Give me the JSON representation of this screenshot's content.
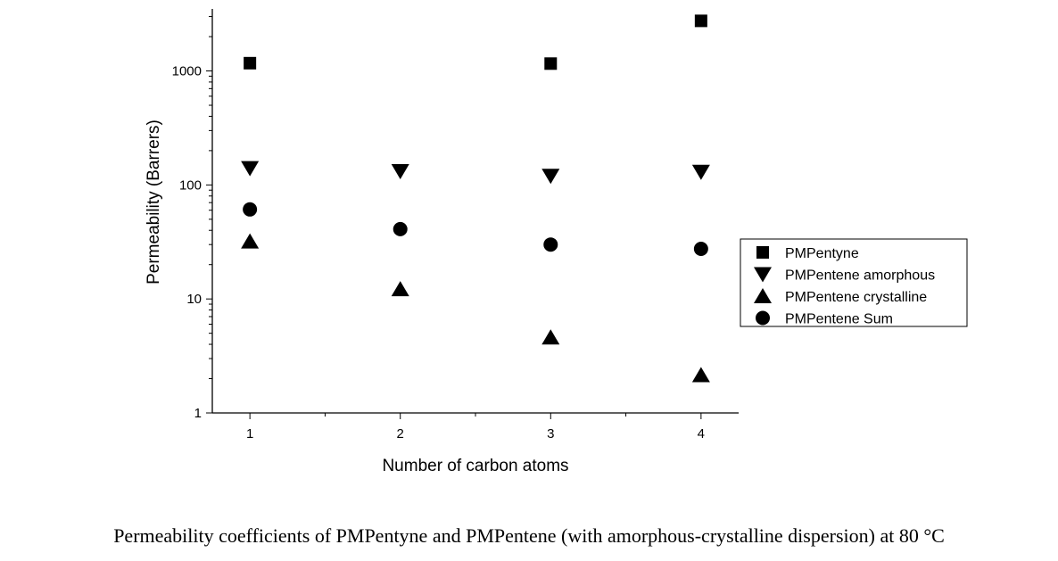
{
  "chart_data": {
    "type": "scatter",
    "x": [
      1,
      2,
      3,
      4
    ],
    "xlabel": "Number of carbon atoms",
    "ylabel": "Permeability (Barrers)",
    "yscale": "log",
    "ylim": [
      1,
      3500
    ],
    "xlim": [
      0.75,
      4.25
    ],
    "xticks": [
      "1",
      "2",
      "3",
      "4"
    ],
    "yticks": [
      {
        "value": 1,
        "label": "1"
      },
      {
        "value": 10,
        "label": "10"
      },
      {
        "value": 100,
        "label": "100"
      },
      {
        "value": 1000,
        "label": "1000"
      }
    ],
    "legend_position": "right",
    "series": [
      {
        "name": "PMPentyne",
        "marker": "square",
        "color": "#000000",
        "values": [
          1170,
          null,
          1160,
          2750
        ]
      },
      {
        "name": "PMPentene amorphous",
        "marker": "triangle-down",
        "color": "#000000",
        "values": [
          140,
          132,
          120,
          130
        ]
      },
      {
        "name": "PMPentene crystalline",
        "marker": "triangle-up",
        "color": "#000000",
        "values": [
          32,
          12.2,
          4.6,
          2.15
        ]
      },
      {
        "name": "PMPentene Sum",
        "marker": "circle",
        "color": "#000000",
        "values": [
          61,
          41,
          30,
          27.5
        ]
      }
    ]
  },
  "caption": "Permeability coefficients of PMPentyne and PMPentene (with amorphous-crystalline dispersion) at 80 °C"
}
